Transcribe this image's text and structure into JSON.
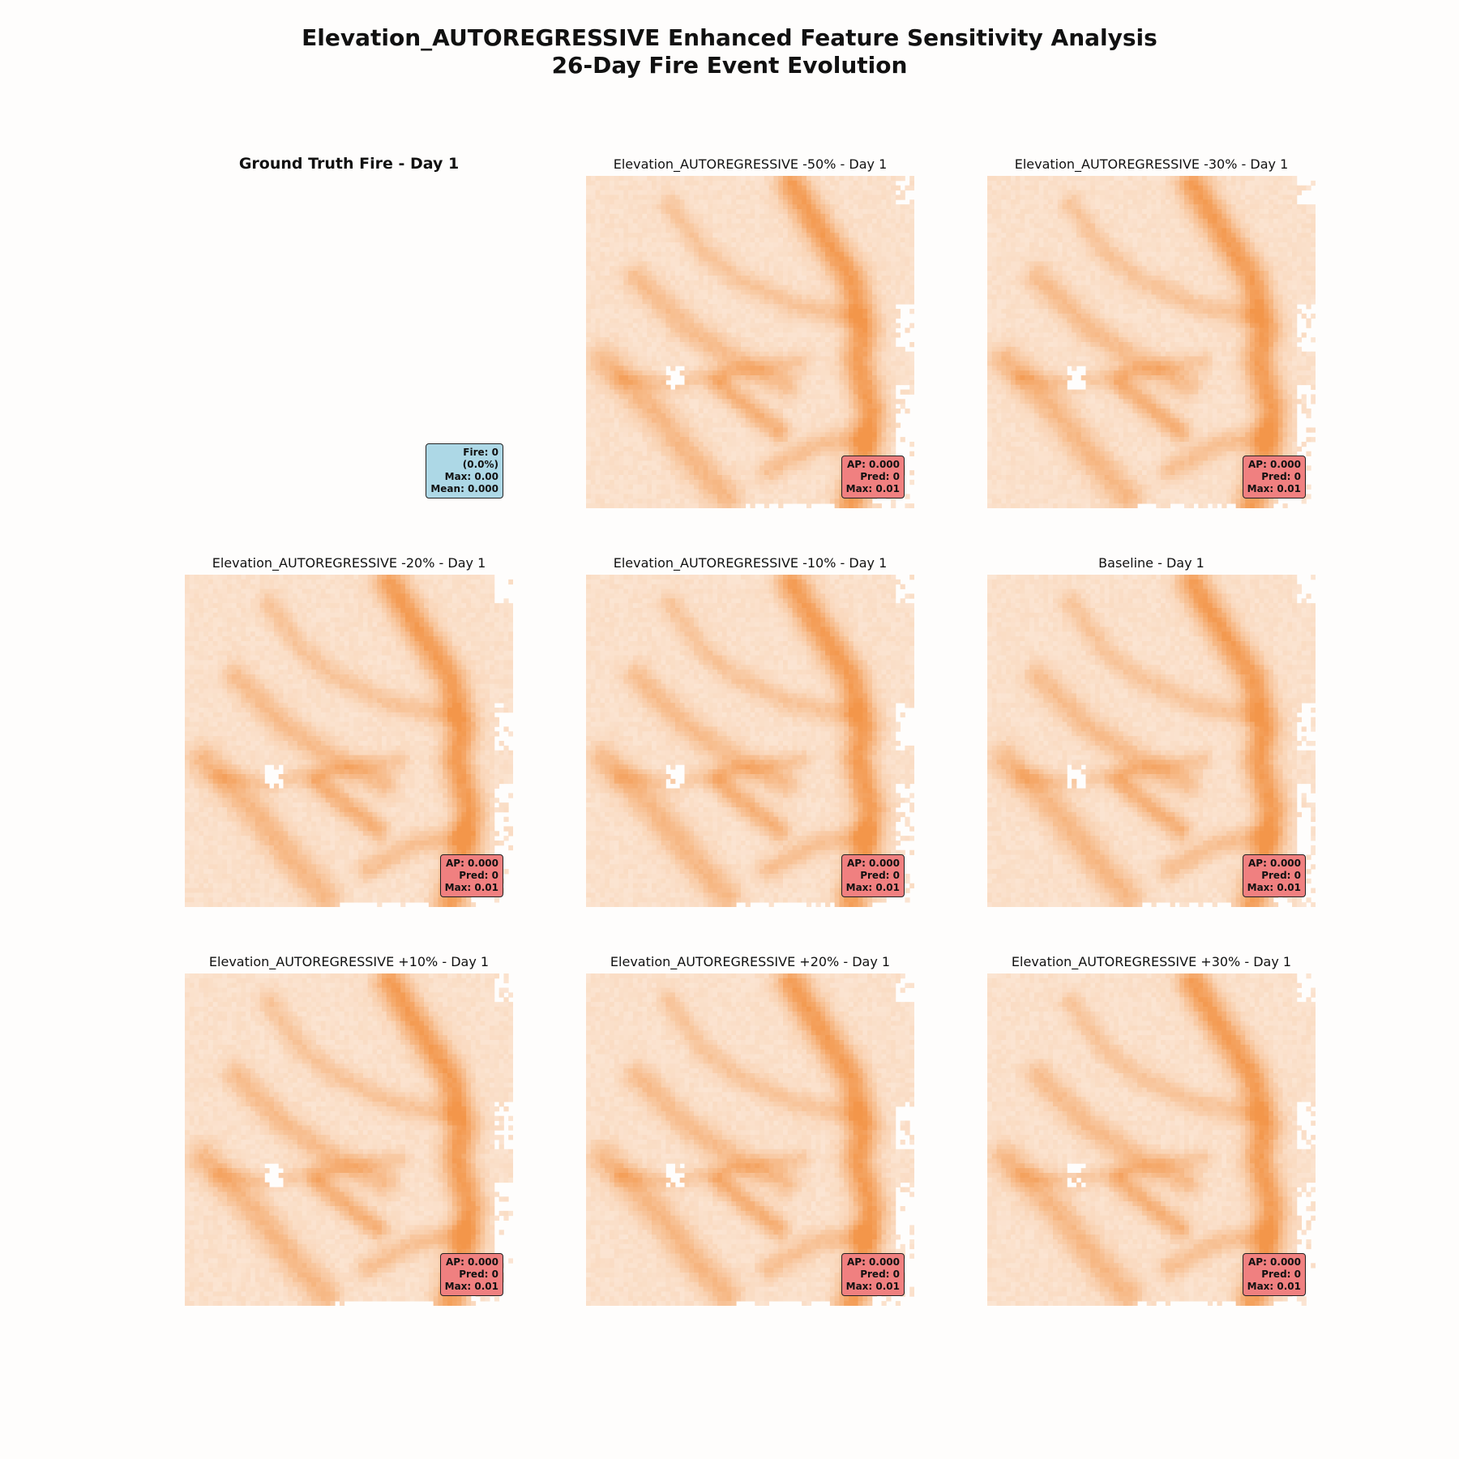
{
  "figure": {
    "title_line1": "Elevation_AUTOREGRESSIVE Enhanced Feature Sensitivity Analysis",
    "title_line2": "26-Day Fire Event Evolution"
  },
  "colors": {
    "background": "#fefdfc",
    "heat_low": "#fbe5d3",
    "heat_high": "#f3964a",
    "gt_box": "#add8e6",
    "pred_box": "#f08080"
  },
  "chart_data": [
    {
      "type": "heatmap",
      "title": "Ground Truth Fire - Day 1",
      "title_bold": true,
      "values_summary": "all zero",
      "stats": {
        "fire": 0,
        "fire_pct": 0.0,
        "max": 0.0,
        "mean": 0.0
      },
      "stats_lines": [
        "Fire: 0",
        "(0.0%)",
        "Max: 0.00",
        "Mean: 0.000"
      ],
      "box_color": "#add8e6"
    },
    {
      "type": "heatmap",
      "title": "Elevation_AUTOREGRESSIVE -50% - Day 1",
      "perturbation_pct": -50,
      "stats": {
        "ap": 0.0,
        "pred": 0,
        "max": 0.01
      },
      "stats_lines": [
        "AP: 0.000",
        "Pred: 0",
        "Max: 0.01"
      ],
      "box_color": "#f08080"
    },
    {
      "type": "heatmap",
      "title": "Elevation_AUTOREGRESSIVE -30% - Day 1",
      "perturbation_pct": -30,
      "stats": {
        "ap": 0.0,
        "pred": 0,
        "max": 0.01
      },
      "stats_lines": [
        "AP: 0.000",
        "Pred: 0",
        "Max: 0.01"
      ],
      "box_color": "#f08080"
    },
    {
      "type": "heatmap",
      "title": "Elevation_AUTOREGRESSIVE -20% - Day 1",
      "perturbation_pct": -20,
      "stats": {
        "ap": 0.0,
        "pred": 0,
        "max": 0.01
      },
      "stats_lines": [
        "AP: 0.000",
        "Pred: 0",
        "Max: 0.01"
      ],
      "box_color": "#f08080"
    },
    {
      "type": "heatmap",
      "title": "Elevation_AUTOREGRESSIVE -10% - Day 1",
      "perturbation_pct": -10,
      "stats": {
        "ap": 0.0,
        "pred": 0,
        "max": 0.01
      },
      "stats_lines": [
        "AP: 0.000",
        "Pred: 0",
        "Max: 0.01"
      ],
      "box_color": "#f08080"
    },
    {
      "type": "heatmap",
      "title": "Baseline - Day 1",
      "perturbation_pct": 0,
      "stats": {
        "ap": 0.0,
        "pred": 0,
        "max": 0.01
      },
      "stats_lines": [
        "AP: 0.000",
        "Pred: 0",
        "Max: 0.01"
      ],
      "box_color": "#f08080"
    },
    {
      "type": "heatmap",
      "title": "Elevation_AUTOREGRESSIVE +10% - Day 1",
      "perturbation_pct": 10,
      "stats": {
        "ap": 0.0,
        "pred": 0,
        "max": 0.01
      },
      "stats_lines": [
        "AP: 0.000",
        "Pred: 0",
        "Max: 0.01"
      ],
      "box_color": "#f08080"
    },
    {
      "type": "heatmap",
      "title": "Elevation_AUTOREGRESSIVE +20% - Day 1",
      "perturbation_pct": 20,
      "stats": {
        "ap": 0.0,
        "pred": 0,
        "max": 0.01
      },
      "stats_lines": [
        "AP: 0.000",
        "Pred: 0",
        "Max: 0.01"
      ],
      "box_color": "#f08080"
    },
    {
      "type": "heatmap",
      "title": "Elevation_AUTOREGRESSIVE +30% - Day 1",
      "perturbation_pct": 30,
      "stats": {
        "ap": 0.0,
        "pred": 0,
        "max": 0.01
      },
      "stats_lines": [
        "AP: 0.000",
        "Pred: 0",
        "Max: 0.01"
      ],
      "box_color": "#f08080"
    }
  ]
}
